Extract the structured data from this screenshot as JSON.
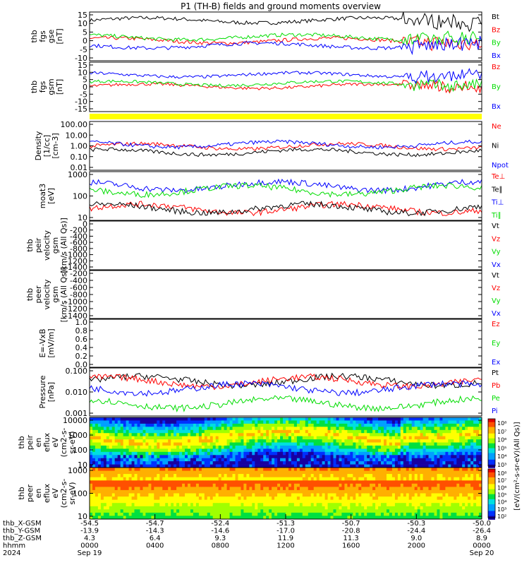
{
  "title": "P1 (TH-B) fields and ground moments overview",
  "colors": {
    "black": "#000000",
    "red": "#ff0000",
    "green": "#00dd00",
    "blue": "#0000ff",
    "yellow": "#ffff00"
  },
  "chart_data": [
    {
      "type": "line",
      "ylabel": [
        "thb",
        "fgs",
        "gse",
        "[nT]"
      ],
      "yticks": [
        "15",
        "10",
        "5",
        "0",
        "-5",
        "-10"
      ],
      "ylim": [
        -12,
        17
      ],
      "series": [
        {
          "name": "Bt",
          "color": "black",
          "base": 12
        },
        {
          "name": "Bz",
          "color": "red",
          "base": 0
        },
        {
          "name": "By",
          "color": "green",
          "base": 2
        },
        {
          "name": "Bx",
          "color": "blue",
          "base": -3
        }
      ]
    },
    {
      "type": "line",
      "ylabel": [
        "thb",
        "fgs",
        "gsm",
        "[nT]"
      ],
      "yticks": [
        "15",
        "10",
        "5",
        "0",
        "-5",
        "-10",
        "-15"
      ],
      "ylim": [
        -18,
        17
      ],
      "series": [
        {
          "name": "Bz",
          "color": "red",
          "base": 0
        },
        {
          "name": "By",
          "color": "green",
          "base": 2
        },
        {
          "name": "Bx",
          "color": "blue",
          "base": 8
        }
      ]
    },
    {
      "type": "line",
      "log": true,
      "ylabel": [
        "Density",
        "[1/cc]",
        "[cm-3]"
      ],
      "yticks": [
        "100.00",
        "10.00",
        "1.00",
        "0.10",
        "0.01"
      ],
      "series": [
        {
          "name": "Ne",
          "color": "red",
          "base": 1
        },
        {
          "name": "Ni",
          "color": "black",
          "base": 0.3
        },
        {
          "name": "Npot",
          "color": "blue",
          "base": 1.5
        }
      ]
    },
    {
      "type": "line",
      "log": true,
      "ylabel": [
        "moat3",
        "[eV]"
      ],
      "yticks": [
        "1000",
        "100",
        "10"
      ],
      "series": [
        {
          "name": "Te⊥",
          "color": "red",
          "base": 30
        },
        {
          "name": "Te∥",
          "color": "black",
          "base": 30
        },
        {
          "name": "Ti⊥",
          "color": "blue",
          "base": 600
        },
        {
          "name": "Ti∥",
          "color": "green",
          "base": 350
        }
      ]
    },
    {
      "type": "line",
      "ylabel": [
        "thb",
        "peir",
        "velocity",
        "gsm",
        "[km/s (All Qs)]"
      ],
      "yticks": [
        "0",
        "-200",
        "-400",
        "-600",
        "-800",
        "-1000",
        "-1200",
        "-1400"
      ],
      "series": [
        {
          "name": "Vt",
          "color": "black"
        },
        {
          "name": "Vz",
          "color": "red"
        },
        {
          "name": "Vy",
          "color": "green"
        },
        {
          "name": "Vx",
          "color": "blue"
        }
      ]
    },
    {
      "type": "line",
      "ylabel": [
        "thb",
        "peer",
        "velocity",
        "gsm",
        "[km/s (All Qs)]"
      ],
      "yticks": [
        "-200",
        "-400",
        "-600",
        "-800",
        "-1000",
        "-1200",
        "-1400"
      ],
      "series": [
        {
          "name": "Vt",
          "color": "black"
        },
        {
          "name": "Vz",
          "color": "red"
        },
        {
          "name": "Vy",
          "color": "green"
        },
        {
          "name": "Vx",
          "color": "blue"
        }
      ]
    },
    {
      "type": "line",
      "ylabel": [
        "E=-VxB",
        "[mV/m]"
      ],
      "yticks": [
        "1.0",
        "0.8",
        "0.6",
        "0.4",
        "0.2",
        "0.0"
      ],
      "series": [
        {
          "name": "Ez",
          "color": "red"
        },
        {
          "name": "Ey",
          "color": "green"
        },
        {
          "name": "Ex",
          "color": "blue"
        }
      ]
    },
    {
      "type": "line",
      "log": true,
      "ylabel": [
        "Pressure",
        "[nPa]"
      ],
      "yticks": [
        "0.100",
        "0.010",
        "0.001"
      ],
      "series": [
        {
          "name": "Pt",
          "color": "black",
          "base": 0.05
        },
        {
          "name": "Pb",
          "color": "red",
          "base": 0.045
        },
        {
          "name": "Pe",
          "color": "green",
          "base": 0.003
        },
        {
          "name": "Pi",
          "color": "blue",
          "base": 0.02
        }
      ]
    },
    {
      "type": "heatmap",
      "ylabel": [
        "thb",
        "peir",
        "en",
        "eflux",
        "eV",
        "(cm2-s-",
        "sr-eV)"
      ],
      "yticks": [
        "10000",
        "1000",
        "100",
        "10"
      ],
      "colorbar": [
        "10⁸",
        "10⁷",
        "10⁶",
        "10⁵",
        "10⁴",
        "10³"
      ]
    },
    {
      "type": "heatmap",
      "ylabel": [
        "thb",
        "peer",
        "en",
        "eflux",
        "eV",
        "(cm2-s-",
        "sr-eV)"
      ],
      "yticks": [
        "1000",
        "100",
        "10"
      ],
      "colorbar": [
        "10⁸",
        "10⁷",
        "10⁶",
        "10⁵",
        "10⁴",
        "10³",
        "10²"
      ]
    }
  ],
  "colorbar_label": "[eV/(cm^2-s-sr-eV)]",
  "colorbar_label2": "[eV/(cm²-s-sr-eV)(All Qs)]",
  "xaxis": {
    "rows": [
      {
        "label": "thb_X-GSM",
        "values": [
          "-54.5",
          "-54.7",
          "-52.4",
          "-51.3",
          "-50.7",
          "-50.3",
          "-50.0"
        ]
      },
      {
        "label": "thb_Y-GSM",
        "values": [
          "-13.9",
          "-14.3",
          "-14.6",
          "-17.0",
          "-20.8",
          "-24.4",
          "-26.4"
        ]
      },
      {
        "label": "thb_Z-GSM",
        "values": [
          "4.3",
          "6.4",
          "9.3",
          "11.9",
          "11.3",
          "9.0",
          "8.9"
        ]
      },
      {
        "label": "hhmm",
        "values": [
          "0000",
          "0400",
          "0800",
          "1200",
          "1600",
          "2000",
          "0000"
        ]
      },
      {
        "label": "2024",
        "values": [
          "Sep 19",
          "",
          "",
          "",
          "",
          "",
          "Sep 20"
        ]
      }
    ]
  }
}
